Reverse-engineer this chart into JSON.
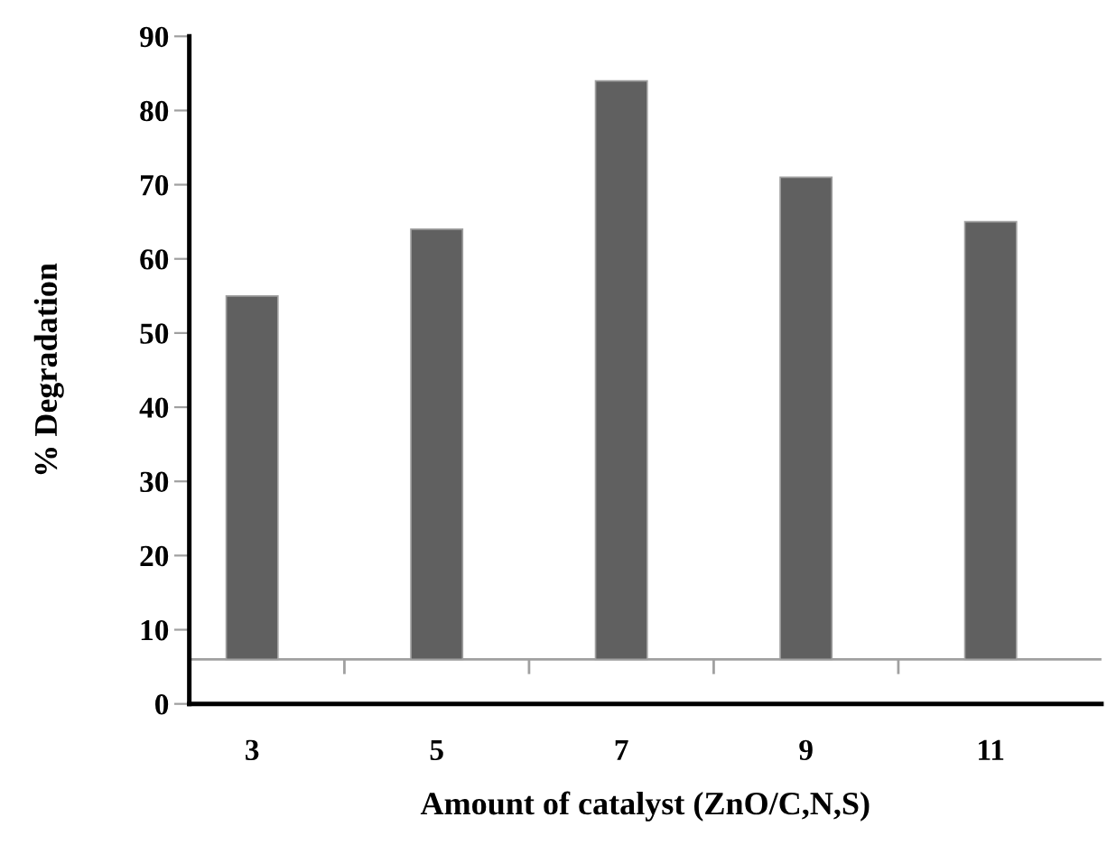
{
  "chart_data": {
    "type": "bar",
    "xlabel": "Amount of catalyst (ZnO/C,N,S)",
    "ylabel": "% Degradation",
    "categories": [
      "3",
      "5",
      "7",
      "9",
      "11"
    ],
    "values": [
      49,
      58,
      78,
      65,
      59
    ],
    "base": [
      6,
      6,
      6,
      6,
      6
    ],
    "color": "#606060",
    "ylim": [
      0,
      90
    ],
    "yticks": [
      0,
      10,
      20,
      30,
      40,
      50,
      60,
      70,
      80,
      90
    ],
    "ref_lines": [
      {
        "axis": "y",
        "value": 6,
        "color": "#a0a0a0"
      }
    ],
    "grid": false,
    "legend": false
  }
}
